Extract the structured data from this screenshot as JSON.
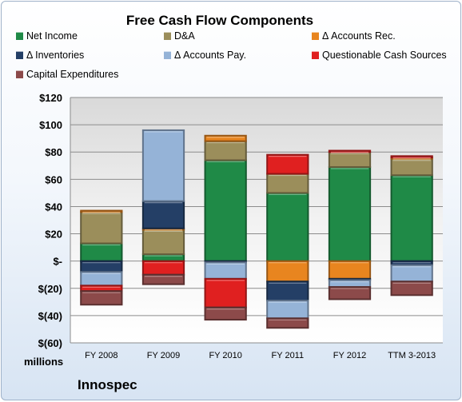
{
  "chart_data": {
    "type": "bar",
    "stacked": true,
    "title": "Free Cash Flow Components",
    "ylabel": "millions",
    "ylim": [
      -60,
      120
    ],
    "yticks": [
      {
        "value": 120,
        "label": "$120"
      },
      {
        "value": 100,
        "label": "$100"
      },
      {
        "value": 80,
        "label": "$80"
      },
      {
        "value": 60,
        "label": "$60"
      },
      {
        "value": 40,
        "label": "$40"
      },
      {
        "value": 20,
        "label": "$20"
      },
      {
        "value": 0,
        "label": "$-"
      },
      {
        "value": -20,
        "label": "$(20)"
      },
      {
        "value": -40,
        "label": "$(40)"
      },
      {
        "value": -60,
        "label": "$(60)"
      }
    ],
    "categories": [
      "FY 2008",
      "FY 2009",
      "FY 2010",
      "FY 2011",
      "FY 2012",
      "TTM 3-2013"
    ],
    "grid": true,
    "legend_position": "top",
    "series": [
      {
        "name": "Net Income",
        "color": "#1f8a47",
        "values": [
          13,
          5,
          74,
          50,
          69,
          63
        ]
      },
      {
        "name": "D&A",
        "color": "#9b8e5b",
        "values": [
          23,
          18,
          14,
          14,
          11,
          12
        ]
      },
      {
        "name": "Δ Accounts Rec.",
        "color": "#e8851f",
        "values": [
          1,
          1,
          4,
          -15,
          -13,
          1
        ]
      },
      {
        "name": "Δ Inventories",
        "color": "#243f66",
        "values": [
          -8,
          20,
          -1,
          -14,
          -1,
          -3
        ]
      },
      {
        "name": "Δ Accounts Pay.",
        "color": "#95b3d7",
        "values": [
          -10,
          52,
          -12,
          -13,
          -5,
          -12
        ]
      },
      {
        "name": "Questionable Cash Sources",
        "color": "#e02020",
        "values": [
          -4,
          -10,
          -21,
          14,
          1,
          1
        ]
      },
      {
        "name": "Capital Expenditures",
        "color": "#8c4a4a",
        "values": [
          -10,
          -7,
          -9,
          -7,
          -9,
          -10
        ]
      }
    ]
  },
  "footer": {
    "units": "millions",
    "company": "Innospec"
  }
}
